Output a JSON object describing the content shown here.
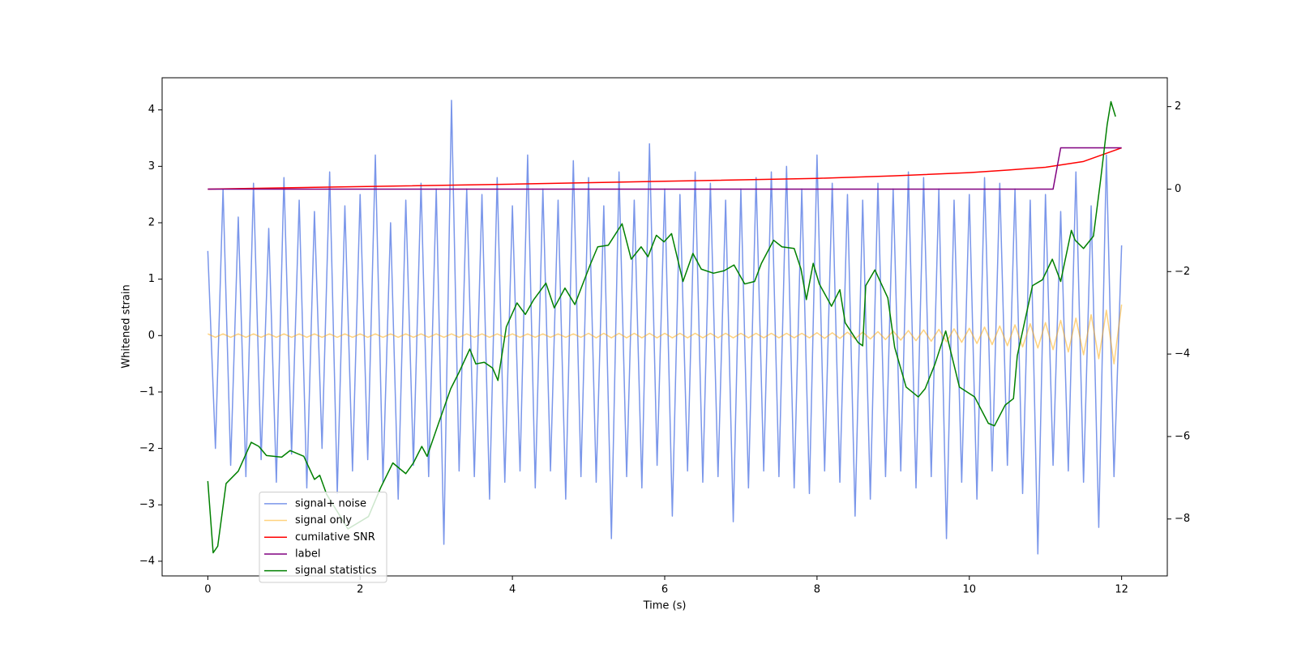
{
  "chart_data": {
    "type": "line",
    "xlabel": "Time (s)",
    "ylabel": "Whitened strain",
    "xlim": [
      -0.6,
      12.6
    ],
    "xticks": [
      0,
      2,
      4,
      6,
      8,
      10,
      12
    ],
    "ylim": [
      -4.26,
      4.57
    ],
    "yticks": [
      {
        "value": -4,
        "label": "−4"
      },
      {
        "value": -3,
        "label": "−3"
      },
      {
        "value": -2,
        "label": "−2"
      },
      {
        "value": -1,
        "label": "−1"
      },
      0,
      1,
      2,
      3,
      4
    ],
    "y2lim": [
      -9.38,
      2.7
    ],
    "y2ticks": [
      {
        "value": -8,
        "label": "−8"
      },
      {
        "value": -6,
        "label": "−6"
      },
      {
        "value": -4,
        "label": "−4"
      },
      {
        "value": -2,
        "label": "−2"
      },
      0,
      2
    ],
    "legend": "lower left",
    "series": [
      {
        "name": "signal+ noise",
        "color": "#4169e1",
        "opacity": 0.7,
        "x": [
          0,
          0.1,
          0.2,
          0.3,
          0.4,
          0.5,
          0.6,
          0.7,
          0.8,
          0.9,
          1,
          1.1,
          1.2,
          1.3,
          1.4,
          1.5,
          1.6,
          1.7,
          1.8,
          1.9,
          2,
          2.1,
          2.2,
          2.3,
          2.4,
          2.5,
          2.6,
          2.7,
          2.8,
          2.9,
          3,
          3.1,
          3.2,
          3.3,
          3.4,
          3.5,
          3.6,
          3.7,
          3.8,
          3.9,
          4,
          4.1,
          4.2,
          4.3,
          4.4,
          4.5,
          4.6,
          4.7,
          4.8,
          4.9,
          5,
          5.1,
          5.2,
          5.3,
          5.4,
          5.5,
          5.6,
          5.7,
          5.8,
          5.9,
          6,
          6.1,
          6.2,
          6.3,
          6.4,
          6.5,
          6.6,
          6.7,
          6.8,
          6.9,
          7,
          7.1,
          7.2,
          7.3,
          7.4,
          7.5,
          7.6,
          7.7,
          7.8,
          7.9,
          8,
          8.1,
          8.2,
          8.3,
          8.4,
          8.5,
          8.6,
          8.7,
          8.8,
          8.9,
          9,
          9.1,
          9.2,
          9.3,
          9.4,
          9.5,
          9.6,
          9.7,
          9.8,
          9.9,
          10,
          10.1,
          10.2,
          10.3,
          10.4,
          10.5,
          10.6,
          10.7,
          10.8,
          10.9,
          11,
          11.1,
          11.2,
          11.3,
          11.4,
          11.5,
          11.6,
          11.7,
          11.8,
          11.9,
          12
        ],
        "values": [
          1.5,
          -2.0,
          2.6,
          -2.3,
          2.1,
          -2.5,
          2.7,
          -2.2,
          1.9,
          -2.6,
          2.8,
          -2.1,
          2.4,
          -2.7,
          2.2,
          -2.0,
          2.9,
          -2.8,
          2.3,
          -2.4,
          2.5,
          -2.2,
          3.2,
          -2.6,
          2.0,
          -2.9,
          2.4,
          -2.3,
          2.7,
          -2.5,
          2.6,
          -3.7,
          4.17,
          -2.4,
          2.6,
          -2.5,
          2.5,
          -2.9,
          2.8,
          -2.6,
          2.3,
          -2.4,
          3.2,
          -2.7,
          2.6,
          -2.4,
          2.4,
          -2.9,
          3.1,
          -2.5,
          2.8,
          -2.6,
          2.3,
          -3.6,
          2.9,
          -2.5,
          2.4,
          -2.7,
          3.4,
          -2.3,
          2.6,
          -3.2,
          2.5,
          -2.4,
          2.9,
          -2.6,
          2.7,
          -2.5,
          2.4,
          -3.3,
          2.6,
          -2.7,
          2.8,
          -2.4,
          2.9,
          -2.5,
          3.0,
          -2.7,
          2.6,
          -2.8,
          3.2,
          -2.4,
          2.7,
          -2.6,
          2.5,
          -3.2,
          2.4,
          -2.9,
          2.7,
          -2.5,
          2.6,
          -2.4,
          2.9,
          -2.7,
          2.8,
          -2.5,
          2.6,
          -3.6,
          2.4,
          -2.6,
          2.5,
          -2.9,
          2.8,
          -2.4,
          2.7,
          -2.3,
          2.6,
          -2.8,
          2.4,
          -3.87,
          2.5,
          -2.3,
          2.2,
          -2.4,
          2.9,
          -2.6,
          2.3,
          -3.4,
          3.2,
          -2.5,
          1.6
        ]
      },
      {
        "name": "signal only",
        "color": "#ffa500",
        "opacity": 0.5,
        "x": [
          0,
          0.1,
          0.2,
          0.3,
          0.4,
          0.5,
          0.6,
          0.7,
          0.8,
          0.9,
          1,
          1.1,
          1.2,
          1.3,
          1.4,
          1.5,
          1.6,
          1.7,
          1.8,
          1.9,
          2,
          2.1,
          2.2,
          2.3,
          2.4,
          2.5,
          2.6,
          2.7,
          2.8,
          2.9,
          3,
          3.1,
          3.2,
          3.3,
          3.4,
          3.5,
          3.6,
          3.7,
          3.8,
          3.9,
          4,
          4.1,
          4.2,
          4.3,
          4.4,
          4.5,
          4.6,
          4.7,
          4.8,
          4.9,
          5,
          5.1,
          5.2,
          5.3,
          5.4,
          5.5,
          5.6,
          5.7,
          5.8,
          5.9,
          6,
          6.1,
          6.2,
          6.3,
          6.4,
          6.5,
          6.6,
          6.7,
          6.8,
          6.9,
          7,
          7.1,
          7.2,
          7.3,
          7.4,
          7.5,
          7.6,
          7.7,
          7.8,
          7.9,
          8,
          8.1,
          8.2,
          8.3,
          8.4,
          8.5,
          8.6,
          8.7,
          8.8,
          8.9,
          9,
          9.1,
          9.2,
          9.3,
          9.4,
          9.5,
          9.6,
          9.7,
          9.8,
          9.9,
          10,
          10.1,
          10.2,
          10.3,
          10.4,
          10.5,
          10.6,
          10.7,
          10.8,
          10.9,
          11,
          11.1,
          11.2,
          11.3,
          11.4,
          11.5,
          11.6,
          11.7,
          11.8,
          11.9,
          12
        ],
        "values": [
          0.03,
          -0.03,
          0.03,
          -0.03,
          0.03,
          -0.03,
          0.03,
          -0.03,
          0.03,
          -0.03,
          0.03,
          -0.03,
          0.03,
          -0.03,
          0.03,
          -0.03,
          0.03,
          -0.03,
          0.03,
          -0.03,
          0.03,
          -0.03,
          0.03,
          -0.03,
          0.03,
          -0.03,
          0.03,
          -0.03,
          0.03,
          -0.03,
          0.03,
          -0.03,
          0.03,
          -0.03,
          0.03,
          -0.03,
          0.03,
          -0.03,
          0.03,
          -0.03,
          0.03,
          -0.03,
          0.03,
          -0.03,
          0.03,
          -0.03,
          0.03,
          -0.03,
          0.03,
          -0.03,
          0.04,
          -0.04,
          0.04,
          -0.04,
          0.04,
          -0.04,
          0.04,
          -0.04,
          0.04,
          -0.04,
          0.04,
          -0.04,
          0.04,
          -0.04,
          0.04,
          -0.04,
          0.04,
          -0.04,
          0.04,
          -0.04,
          0.04,
          -0.04,
          0.04,
          -0.04,
          0.04,
          -0.04,
          0.04,
          -0.04,
          0.04,
          -0.04,
          0.05,
          -0.05,
          0.05,
          -0.05,
          0.06,
          -0.06,
          0.06,
          -0.06,
          0.07,
          -0.07,
          0.08,
          -0.08,
          0.09,
          -0.09,
          0.1,
          -0.1,
          0.11,
          -0.11,
          0.12,
          -0.12,
          0.13,
          -0.14,
          0.15,
          -0.16,
          0.17,
          -0.18,
          0.19,
          -0.2,
          0.21,
          -0.22,
          0.23,
          -0.25,
          0.27,
          -0.29,
          0.31,
          -0.34,
          0.37,
          -0.41,
          0.45,
          -0.5,
          0.55
        ]
      },
      {
        "name": "cumilative SNR",
        "color": "#ff0000",
        "axis": "y2",
        "x": [
          0,
          2,
          4,
          6,
          8,
          9,
          10,
          10.5,
          11,
          11.5,
          12
        ],
        "values": [
          0,
          0.06,
          0.12,
          0.19,
          0.26,
          0.32,
          0.4,
          0.46,
          0.53,
          0.67,
          1.0
        ]
      },
      {
        "name": "label",
        "color": "#800080",
        "axis": "y2",
        "x": [
          0,
          11.1,
          11.2,
          12
        ],
        "values": [
          0,
          0,
          1,
          1
        ]
      },
      {
        "name": "signal statistics",
        "color": "#008000",
        "axis": "y2",
        "x": [
          0,
          0.07,
          0.13,
          0.24,
          0.4,
          0.57,
          0.67,
          0.77,
          0.97,
          1.08,
          1.26,
          1.4,
          1.47,
          1.56,
          1.84,
          2.11,
          2.27,
          2.43,
          2.52,
          2.6,
          2.7,
          2.81,
          2.88,
          3.03,
          3.19,
          3.3,
          3.44,
          3.52,
          3.63,
          3.74,
          3.81,
          3.92,
          4.06,
          4.17,
          4.28,
          4.44,
          4.55,
          4.69,
          4.82,
          5.02,
          5.12,
          5.26,
          5.44,
          5.56,
          5.69,
          5.78,
          5.89,
          5.99,
          6.09,
          6.24,
          6.37,
          6.48,
          6.64,
          6.78,
          6.91,
          7.05,
          7.18,
          7.27,
          7.43,
          7.54,
          7.7,
          7.79,
          7.86,
          7.95,
          8.03,
          8.19,
          8.3,
          8.37,
          8.54,
          8.6,
          8.64,
          8.76,
          8.93,
          9.02,
          9.17,
          9.33,
          9.42,
          9.55,
          9.69,
          9.87,
          10.07,
          10.25,
          10.33,
          10.47,
          10.58,
          10.63,
          10.83,
          10.96,
          11.09,
          11.2,
          11.34,
          11.39,
          11.5,
          11.63,
          11.72,
          11.81,
          11.86,
          11.92
        ],
        "values": [
          -7.08,
          -8.82,
          -8.66,
          -7.14,
          -6.84,
          -6.14,
          -6.24,
          -6.46,
          -6.5,
          -6.34,
          -6.48,
          -7.04,
          -6.94,
          -7.4,
          -8.24,
          -7.94,
          -7.24,
          -6.64,
          -6.78,
          -6.9,
          -6.64,
          -6.24,
          -6.48,
          -5.68,
          -4.84,
          -4.44,
          -3.88,
          -4.24,
          -4.2,
          -4.34,
          -4.64,
          -3.34,
          -2.76,
          -3.04,
          -2.68,
          -2.28,
          -2.88,
          -2.4,
          -2.8,
          -1.84,
          -1.4,
          -1.36,
          -0.84,
          -1.7,
          -1.4,
          -1.64,
          -1.12,
          -1.28,
          -1.08,
          -2.24,
          -1.56,
          -1.94,
          -2.04,
          -1.98,
          -1.84,
          -2.3,
          -2.24,
          -1.8,
          -1.24,
          -1.4,
          -1.44,
          -1.94,
          -2.68,
          -1.8,
          -2.3,
          -2.84,
          -2.44,
          -3.24,
          -3.72,
          -3.8,
          -2.34,
          -1.96,
          -2.64,
          -3.84,
          -4.8,
          -5.04,
          -4.84,
          -4.24,
          -3.44,
          -4.8,
          -5.04,
          -5.68,
          -5.74,
          -5.24,
          -5.08,
          -4.04,
          -2.34,
          -2.2,
          -1.7,
          -2.24,
          -1.0,
          -1.24,
          -1.44,
          -1.14,
          0.16,
          1.56,
          2.12,
          1.76
        ]
      }
    ]
  }
}
